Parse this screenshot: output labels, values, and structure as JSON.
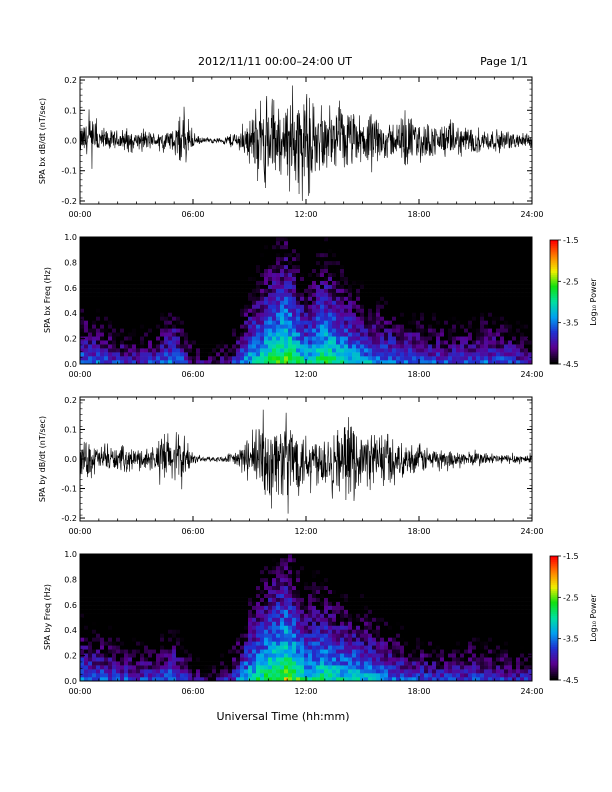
{
  "header": {
    "date_range": "2012/11/11   00:00–24:00 UT",
    "page": "Page 1/1"
  },
  "footer": {
    "xlabel": "Universal Time (hh:mm)"
  },
  "colorbar": {
    "label": "Log₁₀ Power",
    "ticks": [
      "-1.5",
      "-2.5",
      "-3.5",
      "-4.5"
    ],
    "colors": [
      "#000000",
      "#5a0090",
      "#2030d0",
      "#00a0f0",
      "#00e0a0",
      "#10e010",
      "#f0f000",
      "#ff8000",
      "#ff0000"
    ]
  },
  "chart_data": [
    {
      "type": "line",
      "panel": "bx-timeseries",
      "ylabel": "SPA bx dB/dt (nT/sec)",
      "x_ticks": [
        "00:00",
        "06:00",
        "12:00",
        "18:00",
        "24:00"
      ],
      "y_ticks": [
        "0.2",
        "0.1",
        "0.0",
        "-0.1",
        "-0.2"
      ],
      "xlim": [
        0,
        24
      ],
      "ylim": [
        -0.21,
        0.21
      ],
      "envelope": {
        "hours": [
          0,
          0.5,
          1,
          1.5,
          2,
          2.5,
          3,
          3.5,
          4,
          4.5,
          5,
          5.5,
          6,
          6.5,
          7,
          7.5,
          8,
          8.5,
          9,
          9.5,
          10,
          10.5,
          11,
          11.5,
          12,
          12.5,
          13,
          13.5,
          14,
          14.5,
          15,
          15.5,
          16,
          16.5,
          17,
          17.5,
          18,
          18.5,
          19,
          19.5,
          20,
          20.5,
          21,
          21.5,
          22,
          22.5,
          23,
          23.5,
          24
        ],
        "amplitude": [
          0.05,
          0.1,
          0.06,
          0.04,
          0.04,
          0.05,
          0.03,
          0.04,
          0.03,
          0.04,
          0.05,
          0.11,
          0.03,
          0.01,
          0.01,
          0.01,
          0.03,
          0.04,
          0.09,
          0.15,
          0.19,
          0.14,
          0.15,
          0.19,
          0.19,
          0.13,
          0.1,
          0.12,
          0.13,
          0.11,
          0.09,
          0.1,
          0.08,
          0.07,
          0.09,
          0.1,
          0.07,
          0.07,
          0.06,
          0.07,
          0.06,
          0.06,
          0.05,
          0.05,
          0.04,
          0.04,
          0.03,
          0.03,
          0.03
        ]
      }
    },
    {
      "type": "heatmap",
      "panel": "bx-spectrogram",
      "ylabel": "SPA bx Freq (Hz)",
      "x_ticks": [
        "00:00",
        "06:00",
        "12:00",
        "18:00",
        "24:00"
      ],
      "y_ticks": [
        "1.0",
        "0.8",
        "0.6",
        "0.4",
        "0.2",
        "0.0"
      ],
      "xlim": [
        0,
        24
      ],
      "ylim": [
        0,
        1.0
      ],
      "color_range": [
        -4.5,
        -1.5
      ],
      "power_profile": {
        "hours": [
          0,
          1,
          2,
          3,
          4,
          5,
          6,
          7,
          8,
          9,
          10,
          11,
          12,
          13,
          14,
          15,
          16,
          17,
          18,
          19,
          20,
          21,
          22,
          23,
          24
        ],
        "peak_log10_power": [
          -3.3,
          -3.4,
          -3.6,
          -3.7,
          -3.6,
          -3.2,
          -3.9,
          -4.1,
          -3.8,
          -3.0,
          -2.6,
          -2.3,
          -2.9,
          -2.5,
          -2.8,
          -3.1,
          -3.2,
          -3.3,
          -3.4,
          -3.5,
          -3.5,
          -3.5,
          -3.4,
          -3.6,
          -3.7
        ]
      }
    },
    {
      "type": "line",
      "panel": "by-timeseries",
      "ylabel": "SPA by dB/dt (nT/sec)",
      "x_ticks": [
        "00:00",
        "06:00",
        "12:00",
        "18:00",
        "24:00"
      ],
      "y_ticks": [
        "0.2",
        "0.1",
        "0.0",
        "-0.1",
        "-0.2"
      ],
      "xlim": [
        0,
        24
      ],
      "ylim": [
        -0.21,
        0.21
      ],
      "envelope": {
        "hours": [
          0,
          0.5,
          1,
          1.5,
          2,
          2.5,
          3,
          3.5,
          4,
          4.5,
          5,
          5.5,
          6,
          6.5,
          7,
          7.5,
          8,
          8.5,
          9,
          9.5,
          10,
          10.5,
          11,
          11.5,
          12,
          12.5,
          13,
          13.5,
          14,
          14.5,
          15,
          15.5,
          16,
          16.5,
          17,
          17.5,
          18,
          18.5,
          19,
          19.5,
          20,
          20.5,
          21,
          21.5,
          22,
          22.5,
          23,
          23.5,
          24
        ],
        "amplitude": [
          0.06,
          0.08,
          0.05,
          0.05,
          0.05,
          0.05,
          0.04,
          0.05,
          0.05,
          0.12,
          0.08,
          0.11,
          0.02,
          0.01,
          0.01,
          0.01,
          0.02,
          0.05,
          0.09,
          0.15,
          0.17,
          0.14,
          0.18,
          0.14,
          0.12,
          0.1,
          0.12,
          0.13,
          0.13,
          0.14,
          0.09,
          0.12,
          0.13,
          0.1,
          0.06,
          0.06,
          0.06,
          0.05,
          0.04,
          0.04,
          0.03,
          0.03,
          0.03,
          0.03,
          0.02,
          0.02,
          0.02,
          0.02,
          0.02
        ]
      }
    },
    {
      "type": "heatmap",
      "panel": "by-spectrogram",
      "ylabel": "SPA by Freq (Hz)",
      "x_ticks": [
        "00:00",
        "06:00",
        "12:00",
        "18:00",
        "24:00"
      ],
      "y_ticks": [
        "1.0",
        "0.8",
        "0.6",
        "0.4",
        "0.2",
        "0.0"
      ],
      "xlim": [
        0,
        24
      ],
      "ylim": [
        0,
        1.0
      ],
      "color_range": [
        -4.5,
        -1.5
      ],
      "power_profile": {
        "hours": [
          0,
          1,
          2,
          3,
          4,
          5,
          6,
          7,
          8,
          9,
          10,
          11,
          12,
          13,
          14,
          15,
          16,
          17,
          18,
          19,
          20,
          21,
          22,
          23,
          24
        ],
        "peak_log10_power": [
          -3.2,
          -3.4,
          -3.5,
          -3.6,
          -3.6,
          -3.3,
          -3.9,
          -4.1,
          -3.7,
          -2.9,
          -2.5,
          -2.2,
          -2.8,
          -2.7,
          -2.9,
          -3.0,
          -3.2,
          -3.4,
          -3.5,
          -3.6,
          -3.6,
          -3.5,
          -3.6,
          -3.7,
          -3.7
        ]
      }
    }
  ]
}
